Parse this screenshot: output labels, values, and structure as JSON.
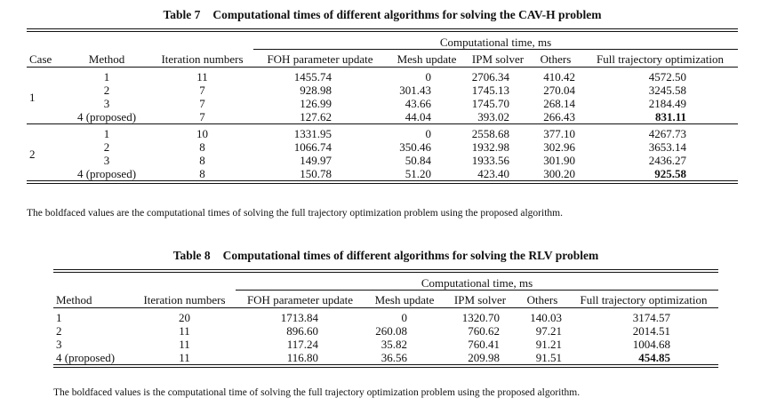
{
  "table7": {
    "number": "Table 7",
    "title": "Computational times of different algorithms for solving the CAV-H problem",
    "group_header": "Computational time, ms",
    "columns": [
      "Case",
      "Method",
      "Iteration numbers",
      "FOH parameter update",
      "Mesh update",
      "IPM solver",
      "Others",
      "Full trajectory optimization"
    ],
    "cases": [
      {
        "case": "1",
        "rows": [
          [
            "1",
            "11",
            "1455.74",
            "0",
            "2706.34",
            "410.42",
            "4572.50"
          ],
          [
            "2",
            "7",
            "928.98",
            "301.43",
            "1745.13",
            "270.04",
            "3245.58"
          ],
          [
            "3",
            "7",
            "126.99",
            "43.66",
            "1745.70",
            "268.14",
            "2184.49"
          ],
          [
            "4 (proposed)",
            "7",
            "127.62",
            "44.04",
            "393.02",
            "266.43",
            "831.11"
          ]
        ]
      },
      {
        "case": "2",
        "rows": [
          [
            "1",
            "10",
            "1331.95",
            "0",
            "2558.68",
            "377.10",
            "4267.73"
          ],
          [
            "2",
            "8",
            "1066.74",
            "350.46",
            "1932.98",
            "302.96",
            "3653.14"
          ],
          [
            "3",
            "8",
            "149.97",
            "50.84",
            "1933.56",
            "301.90",
            "2436.27"
          ],
          [
            "4 (proposed)",
            "8",
            "150.78",
            "51.20",
            "423.40",
            "300.20",
            "925.58"
          ]
        ]
      }
    ],
    "note": "The boldfaced values are the computational times of solving the full trajectory optimization problem using the proposed algorithm."
  },
  "table8": {
    "number": "Table 8",
    "title": "Computational times of different algorithms for solving the RLV problem",
    "group_header": "Computational time, ms",
    "columns": [
      "Method",
      "Iteration numbers",
      "FOH parameter update",
      "Mesh update",
      "IPM solver",
      "Others",
      "Full trajectory optimization"
    ],
    "rows": [
      [
        "1",
        "20",
        "1713.84",
        "0",
        "1320.70",
        "140.03",
        "3174.57"
      ],
      [
        "2",
        "11",
        "896.60",
        "260.08",
        "760.62",
        "97.21",
        "2014.51"
      ],
      [
        "3",
        "11",
        "117.24",
        "35.82",
        "760.41",
        "91.21",
        "1004.68"
      ],
      [
        "4 (proposed)",
        "11",
        "116.80",
        "36.56",
        "209.98",
        "91.51",
        "454.85"
      ]
    ],
    "note": "The boldfaced values is the computational time of solving the full trajectory optimization problem using the proposed algorithm."
  }
}
